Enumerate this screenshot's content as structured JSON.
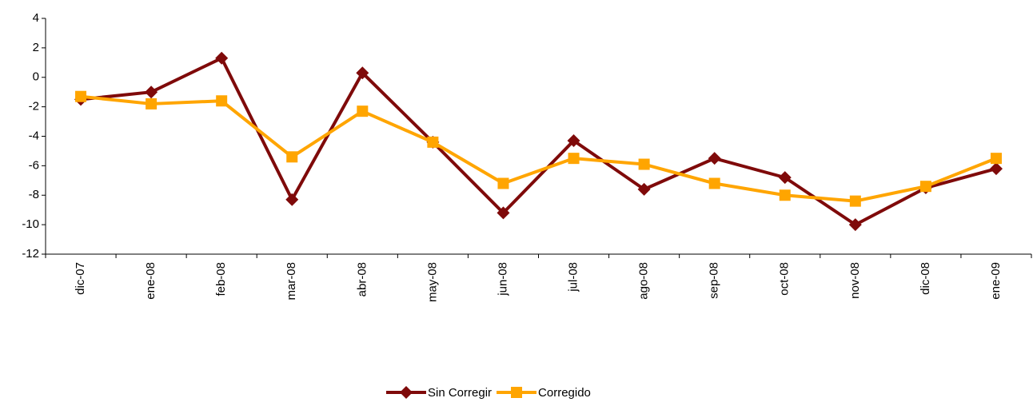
{
  "chart_data": {
    "type": "line",
    "categories": [
      "dic-07",
      "ene-08",
      "feb-08",
      "mar-08",
      "abr-08",
      "may-08",
      "jun-08",
      "jul-08",
      "ago-08",
      "sep-08",
      "oct-08",
      "nov-08",
      "dic-08",
      "ene-09"
    ],
    "series": [
      {
        "name": "Sin Corregir",
        "color": "#7f0a0a",
        "marker": "diamond",
        "values": [
          -1.5,
          -1.0,
          1.3,
          -8.3,
          0.3,
          -4.4,
          -9.2,
          -4.3,
          -7.6,
          -5.5,
          -6.8,
          -10.0,
          -7.5,
          -6.2
        ]
      },
      {
        "name": "Corregido",
        "color": "#ffa500",
        "marker": "square",
        "values": [
          -1.3,
          -1.8,
          -1.6,
          -5.4,
          -2.3,
          -4.4,
          -7.2,
          -5.5,
          -5.9,
          -7.2,
          -8.0,
          -8.4,
          -7.4,
          -5.5
        ]
      }
    ],
    "ylim": [
      -12,
      4
    ],
    "yticks": [
      -12,
      -10,
      -8,
      -6,
      -4,
      -2,
      0,
      2,
      4
    ],
    "grid": false,
    "legend": "bottom"
  }
}
